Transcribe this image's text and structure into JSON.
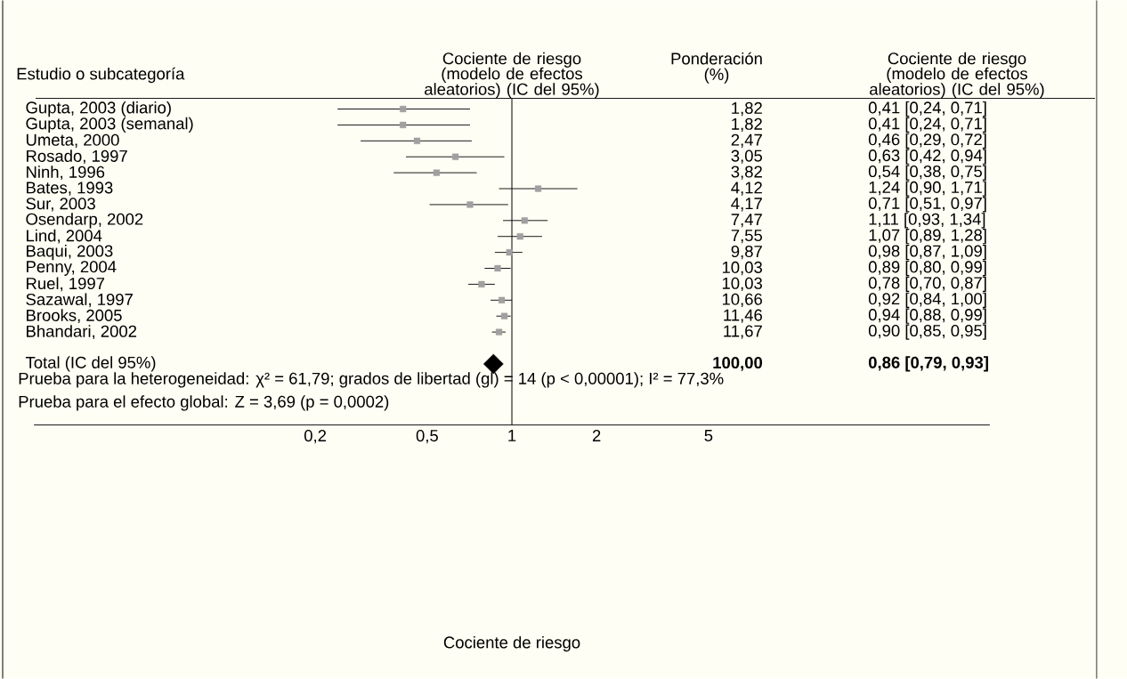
{
  "chart_data": {
    "type": "scatter",
    "orientation": "horizontal",
    "title": "Cociente de riesgo",
    "subtitle": "(modelo de efectos aleatorios) (IC del 95%)",
    "categories": [
      "Gupta, 2003 (diario)",
      "Gupta, 2003 (semanal)",
      "Umeta, 2000",
      "Rosado, 1997",
      "Ninh, 1996",
      "Bates, 1993",
      "Sur, 2003",
      "Osendarp, 2002",
      "Lind, 2004",
      "Baqui, 2003",
      "Penny, 2004",
      "Ruel, 1997",
      "Sazawal, 1997",
      "Brooks, 2005",
      "Bhandari, 2002",
      null,
      "Total (IC del 95%)"
    ],
    "series": [
      {
        "color": "#a0a0a0",
        "marker": "square",
        "values": [
          0.41,
          0.41,
          0.46,
          0.63,
          0.54,
          1.24,
          0.71,
          1.11,
          1.07,
          0.98,
          0.89,
          0.78,
          0.92,
          0.94,
          0.9,
          null,
          null
        ],
        "errors": [
          [
            0.24,
            0.71
          ],
          [
            0.24,
            0.71
          ],
          [
            0.29,
            0.72
          ],
          [
            0.42,
            0.94
          ],
          [
            0.38,
            0.75
          ],
          [
            0.9,
            1.71
          ],
          [
            0.51,
            0.97
          ],
          [
            0.93,
            1.34
          ],
          [
            0.89,
            1.28
          ],
          [
            0.87,
            1.09
          ],
          [
            0.8,
            0.99
          ],
          [
            0.7,
            0.87
          ],
          [
            0.84,
            1.0
          ],
          [
            0.88,
            0.99
          ],
          [
            0.85,
            0.95
          ],
          null,
          null
        ]
      },
      {
        "color": "#000000",
        "marker": "diamond",
        "values": [
          null,
          null,
          null,
          null,
          null,
          null,
          null,
          null,
          null,
          null,
          null,
          null,
          null,
          null,
          null,
          null,
          0.86
        ]
      }
    ],
    "log": "x",
    "xlim": [
      0.02,
      50
    ],
    "xticks": [
      {
        "value": 0.2,
        "label": "0,2"
      },
      {
        "value": 0.5,
        "label": "0,5"
      },
      {
        "value": 1,
        "label": "1"
      },
      {
        "value": 2,
        "label": "2"
      },
      {
        "value": 5,
        "label": "5"
      }
    ],
    "ref_lines": [
      {
        "axis": "x",
        "value": 1,
        "color": "#000000"
      }
    ],
    "annotations": [
      "Estudio o subcategoría",
      "Ponderación (%)",
      "Cociente de riesgo",
      "(modelo de efectos aleatorios) (IC del 95%)",
      "1,82",
      "1,82",
      "2,47",
      "3,05",
      "3,82",
      "4,12",
      "4,17",
      "7,47",
      "7,55",
      "9,87",
      "10,03",
      "10,03",
      "10,66",
      "11,46",
      "11,67",
      "**100,00**",
      "Prueba para la heterogeneidad: χ² = 61,79; grados de libertad (gl) = 14 (p < 0,00001); I² = 77,3%",
      "Prueba para el efecto global: Z = 3,69 (p = 0,0002)",
      "Cociente de riesgo",
      "0,41 [0,24, 0,71]",
      "0,41 [0,24, 0,71]",
      "0,46 [0,29, 0,72]",
      "0,63 [0,42, 0,94]",
      "0,54 [0,38, 0,75]",
      "1,24 [0,90, 1,71]",
      "0,71 [0,51, 0,97]",
      "1,11 [0,93, 1,34]",
      "1,07 [0,89, 1,28]",
      "0,98 [0,87, 1,09]",
      "0,89 [0,80, 0,99]",
      "0,78 [0,70, 0,87]",
      "0,92 [0,84, 1,00]",
      "0,94 [0,88, 0,99]",
      "0,90 [0,85, 0,95]",
      "**0,86 [0,79, 0,93]**"
    ]
  }
}
